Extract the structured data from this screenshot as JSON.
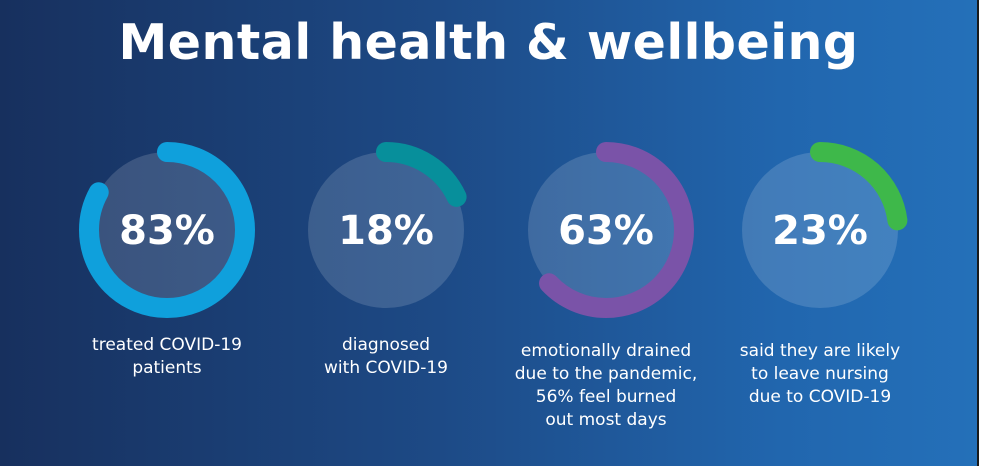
{
  "title": "Mental health & wellbeing",
  "stats": [
    {
      "percent": 83,
      "value_text": "83%",
      "caption": "treated COVID-19\npatients",
      "color": "#0fa0dc"
    },
    {
      "percent": 18,
      "value_text": "18%",
      "caption": "diagnosed\nwith COVID-19",
      "color": "#078f9b"
    },
    {
      "percent": 63,
      "value_text": "63%",
      "caption": "emotionally drained\ndue to the pandemic,\n56% feel burned\nout most days",
      "color": "#7a53a8"
    },
    {
      "percent": 23,
      "value_text": "23%",
      "caption": "said they are likely\nto leave nursing\ndue to COVID-19",
      "color": "#3eb84a"
    }
  ]
}
